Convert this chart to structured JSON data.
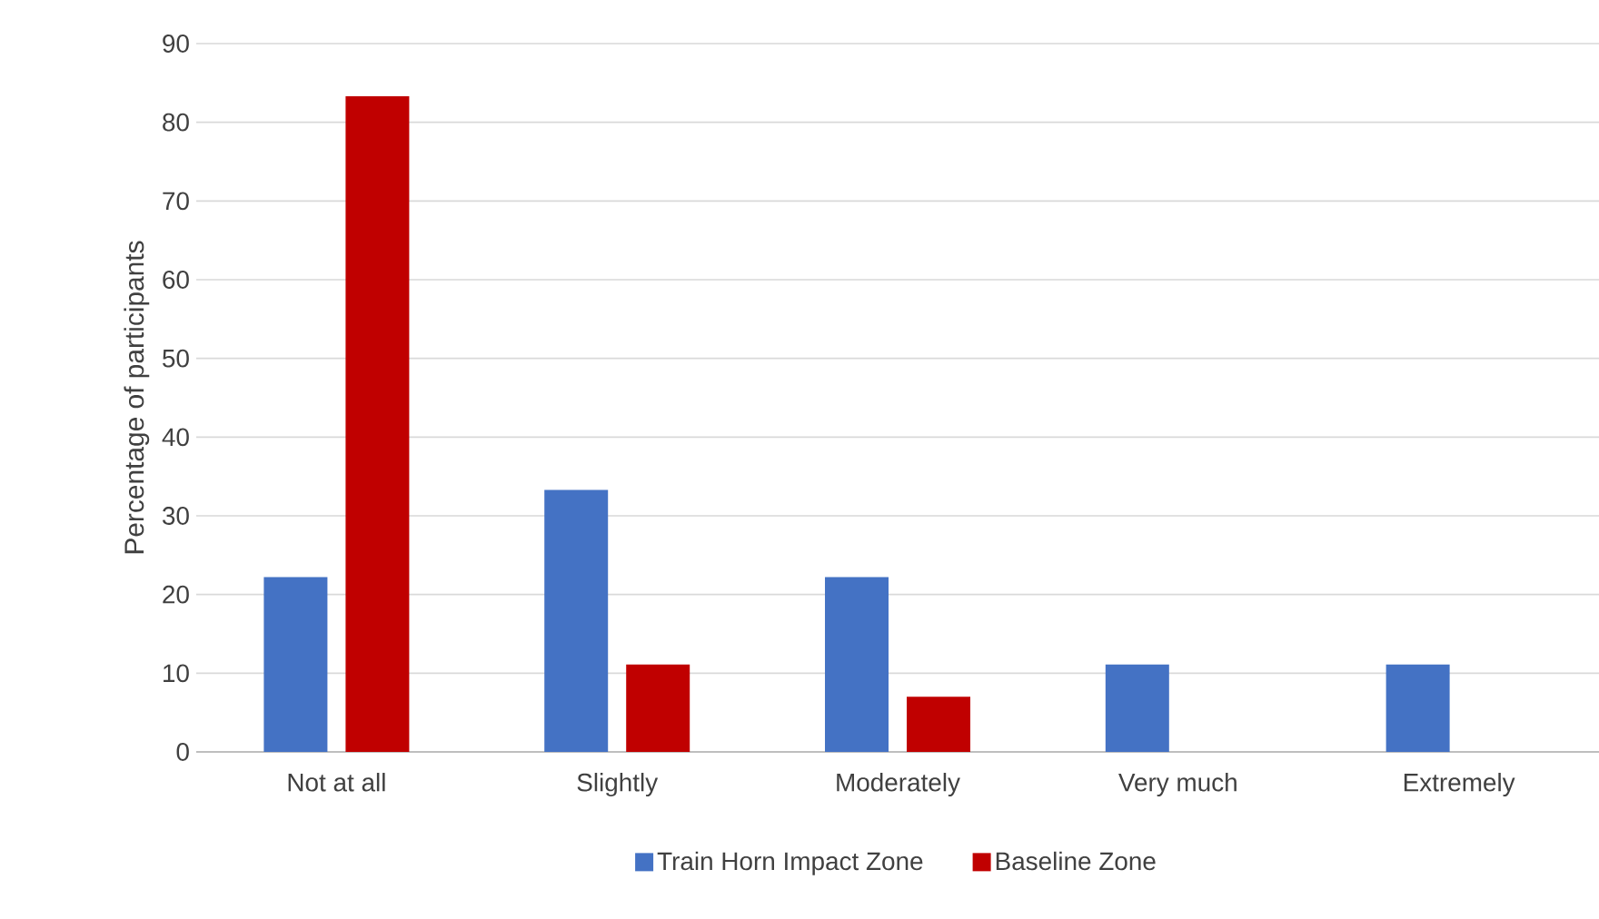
{
  "chart_data": {
    "type": "bar",
    "ylabel": "Percentage of participants",
    "categories": [
      "Not at all",
      "Slightly",
      "Moderately",
      "Very much",
      "Extremely"
    ],
    "series": [
      {
        "name": "Train Horn Impact Zone",
        "color": "#4472c4",
        "values": [
          22.2,
          33.3,
          22.2,
          11.1,
          11.1
        ]
      },
      {
        "name": "Baseline Zone",
        "color": "#c00000",
        "values": [
          83.3,
          11.1,
          7,
          null,
          null
        ]
      }
    ],
    "ylim": [
      0,
      90
    ],
    "yticks": [
      0,
      10,
      20,
      30,
      40,
      50,
      60,
      70,
      80,
      90
    ],
    "grid": "y",
    "legend": "bottom"
  }
}
